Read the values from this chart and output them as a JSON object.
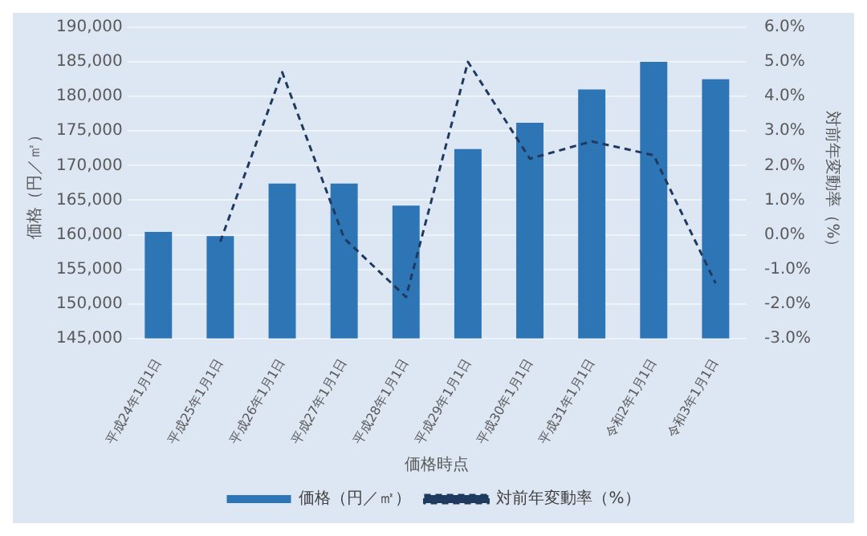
{
  "chart_data": {
    "type": "bar",
    "categories": [
      "平成24年1月1日",
      "平成25年1月1日",
      "平成26年1月1日",
      "平成27年1月1日",
      "平成28年1月1日",
      "平成29年1月1日",
      "平成30年1月1日",
      "平成31年1月1日",
      "令和2年1月1日",
      "令和3年1月1日"
    ],
    "xlabel": "価格時点",
    "ylabel": "価格（円／㎡）",
    "y2label": "対前年変動率（%）",
    "series": [
      {
        "name": "価格（円／㎡）",
        "color": "#2e75b6",
        "values": [
          160400,
          159800,
          167400,
          167400,
          164200,
          172400,
          176200,
          181000,
          185000,
          182500
        ]
      },
      {
        "name": "対前年変動率（%）",
        "type": "line",
        "axis": "y2",
        "color": "#1f3a5f",
        "line_style": "dashed",
        "marker": "none",
        "values": [
          null,
          -0.2,
          4.7,
          -0.1,
          -1.8,
          5.0,
          2.2,
          2.7,
          2.3,
          -1.4
        ]
      }
    ],
    "ylim": [
      145000,
      190000
    ],
    "yticks": [
      {
        "value": 145000,
        "label": "145,000"
      },
      {
        "value": 150000,
        "label": "150,000"
      },
      {
        "value": 155000,
        "label": "155,000"
      },
      {
        "value": 160000,
        "label": "160,000"
      },
      {
        "value": 165000,
        "label": "165,000"
      },
      {
        "value": 170000,
        "label": "170,000"
      },
      {
        "value": 175000,
        "label": "175,000"
      },
      {
        "value": 180000,
        "label": "180,000"
      },
      {
        "value": 185000,
        "label": "185,000"
      },
      {
        "value": 190000,
        "label": "190,000"
      }
    ],
    "y2lim": [
      -3,
      6
    ],
    "y2ticks": [
      {
        "value": -3,
        "label": "-3.0%"
      },
      {
        "value": -2,
        "label": "-2.0%"
      },
      {
        "value": -1,
        "label": "-1.0%"
      },
      {
        "value": 0,
        "label": "0.0%"
      },
      {
        "value": 1,
        "label": "1.0%"
      },
      {
        "value": 2,
        "label": "2.0%"
      },
      {
        "value": 3,
        "label": "3.0%"
      },
      {
        "value": 4,
        "label": "4.0%"
      },
      {
        "value": 5,
        "label": "5.0%"
      },
      {
        "value": 6,
        "label": "6.0%"
      }
    ],
    "grid": "y",
    "legend": "bottom"
  }
}
